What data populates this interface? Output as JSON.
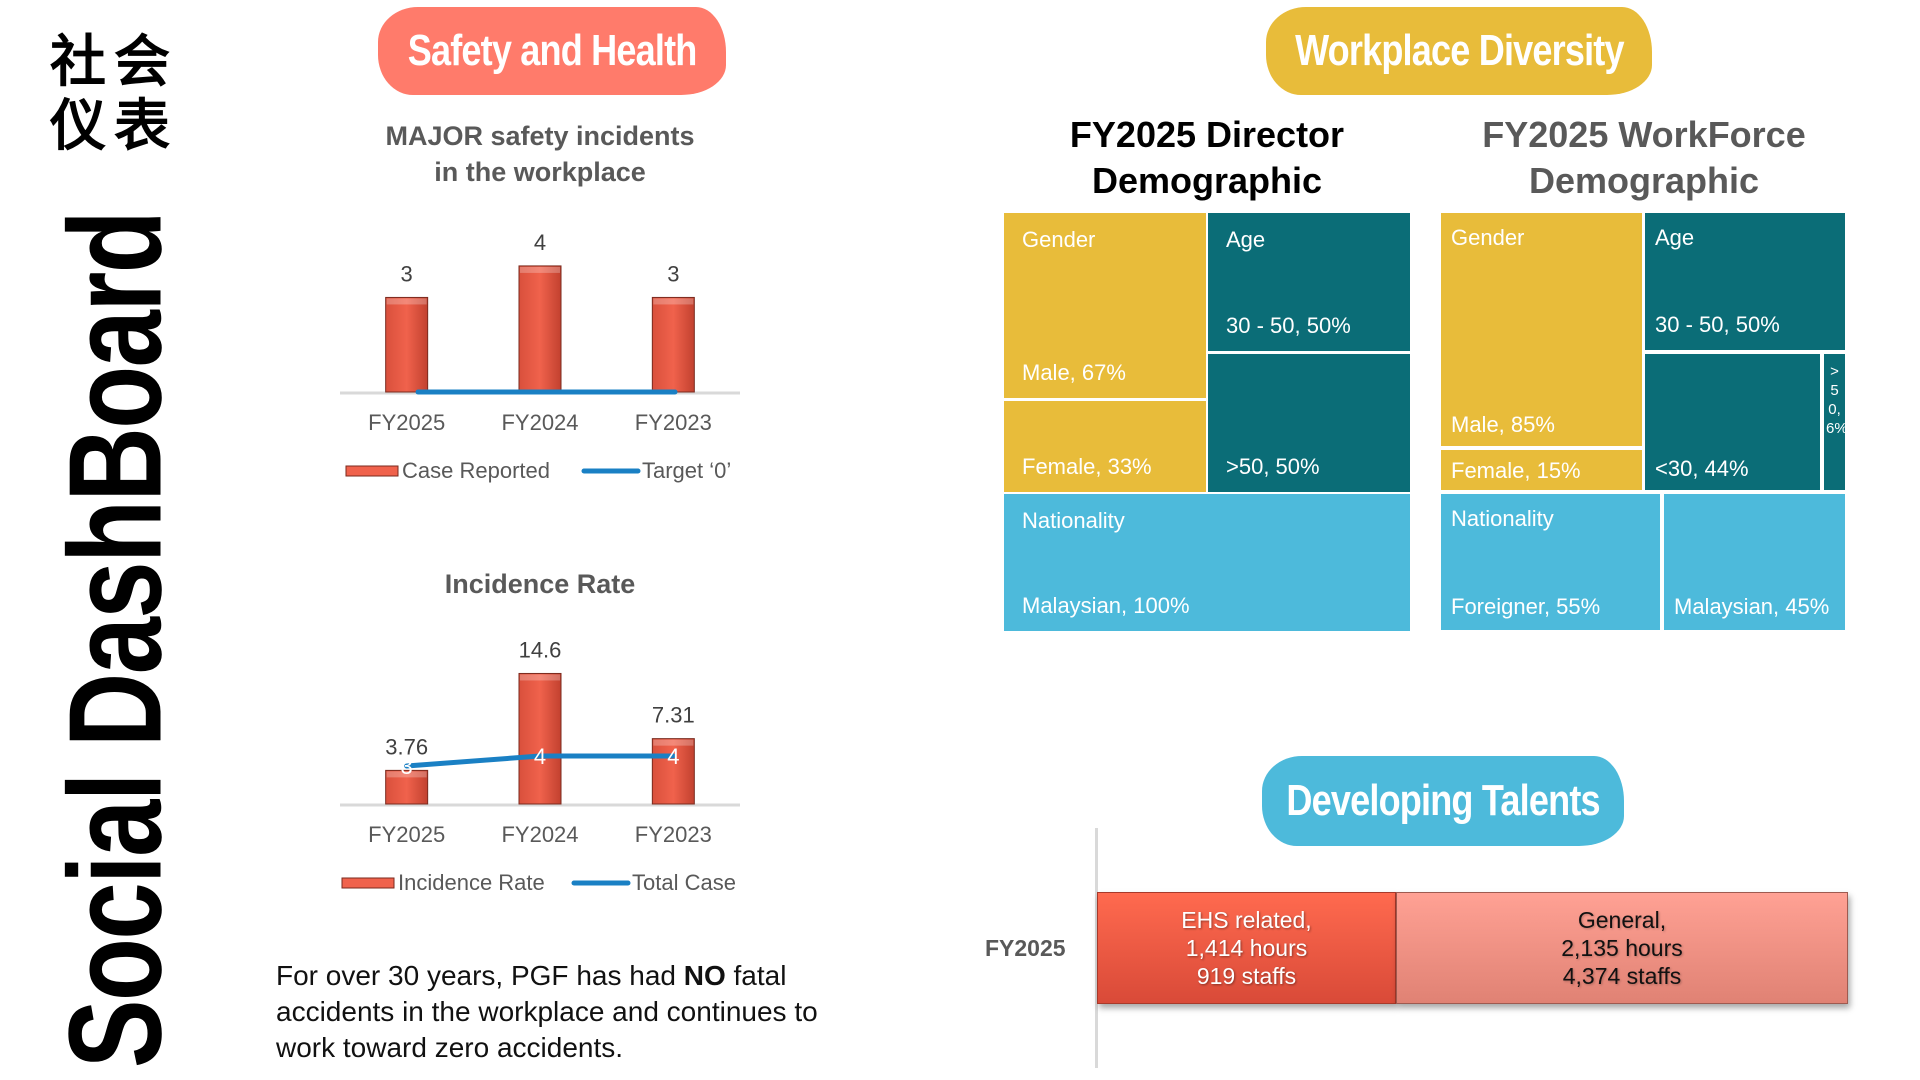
{
  "sidebar": {
    "cjk_line1": "社会",
    "cjk_line2": "仪表",
    "title": "Social DashBoard"
  },
  "sections": {
    "safety": "Safety and Health",
    "diversity": "Workplace Diversity",
    "talents": "Developing Talents"
  },
  "colors": {
    "safety_badge": "#ff7b6b",
    "diversity_badge": "#e8bc3a",
    "talents_badge": "#4dbadb",
    "bar": "#f0624c",
    "line": "#1a80c4",
    "gold": "#e8bc3a",
    "teal": "#0b6d77",
    "sky": "#4dbadb"
  },
  "chart_data": [
    {
      "type": "bar",
      "title_line1": "MAJOR safety incidents",
      "title_line2": "in the workplace",
      "categories": [
        "FY2025",
        "FY2024",
        "FY2023"
      ],
      "series": [
        {
          "name": "Case Reported",
          "kind": "bar",
          "values": [
            3,
            4,
            3
          ],
          "labels": [
            "3",
            "4",
            "3"
          ]
        },
        {
          "name": "Target ‘0’",
          "kind": "line",
          "values": [
            0,
            0,
            0
          ]
        }
      ],
      "ylim": [
        0,
        4.6
      ],
      "grid": false,
      "legend": "bottom"
    },
    {
      "type": "bar",
      "title_line1": "Incidence Rate",
      "categories": [
        "FY2025",
        "FY2024",
        "FY2023"
      ],
      "series": [
        {
          "name": "Incidence Rate",
          "kind": "bar",
          "values": [
            3.76,
            14.6,
            7.31
          ],
          "labels": [
            "3.76",
            "14.6",
            "7.31"
          ]
        },
        {
          "name": "Total Case",
          "kind": "line",
          "values": [
            3,
            4,
            4
          ],
          "labels": [
            "3",
            "4",
            "4"
          ]
        }
      ],
      "ylim": [
        0,
        17
      ],
      "grid": false,
      "legend": "bottom"
    },
    {
      "type": "heatmap",
      "subtype": "treemap",
      "title_line1": "FY2025 Director",
      "title_line2": "Demographic",
      "groups": [
        {
          "name": "Gender",
          "items": [
            {
              "label": "Male, 67%",
              "value": 67
            },
            {
              "label": "Female, 33%",
              "value": 33
            }
          ]
        },
        {
          "name": "Age",
          "items": [
            {
              "label": "30 - 50, 50%",
              "value": 50
            },
            {
              "label": ">50, 50%",
              "value": 50
            }
          ]
        },
        {
          "name": "Nationality",
          "items": [
            {
              "label": "Malaysian, 100%",
              "value": 100
            }
          ]
        }
      ]
    },
    {
      "type": "heatmap",
      "subtype": "treemap",
      "title_line1": "FY2025 WorkForce",
      "title_line2": "Demographic",
      "groups": [
        {
          "name": "Gender",
          "items": [
            {
              "label": "Male, 85%",
              "value": 85
            },
            {
              "label": "Female, 15%",
              "value": 15
            }
          ]
        },
        {
          "name": "Age",
          "items": [
            {
              "label": "30 - 50, 50%",
              "value": 50
            },
            {
              "label": "<30, 44%",
              "value": 44
            },
            {
              "label": ">50, 6%",
              "value": 6
            }
          ]
        },
        {
          "name": "Nationality",
          "items": [
            {
              "label": "Foreigner, 55%",
              "value": 55
            },
            {
              "label": "Malaysian, 45%",
              "value": 45
            }
          ]
        }
      ]
    },
    {
      "type": "bar",
      "subtype": "stacked-horizontal",
      "categories": [
        "FY2025"
      ],
      "series": [
        {
          "name": "EHS related",
          "hours": 1414,
          "staffs": 919,
          "line1": "EHS related,",
          "line2": "1,414 hours",
          "line3": "919 staffs"
        },
        {
          "name": "General",
          "hours": 2135,
          "staffs": 4374,
          "line1": "General,",
          "line2": "2,135 hours",
          "line3": "4,374 staffs"
        }
      ]
    }
  ],
  "note": {
    "before": "For over 30 years, PGF has had ",
    "bold": "NO",
    "after": " fatal accidents in the workplace and continues to work toward zero accidents."
  }
}
